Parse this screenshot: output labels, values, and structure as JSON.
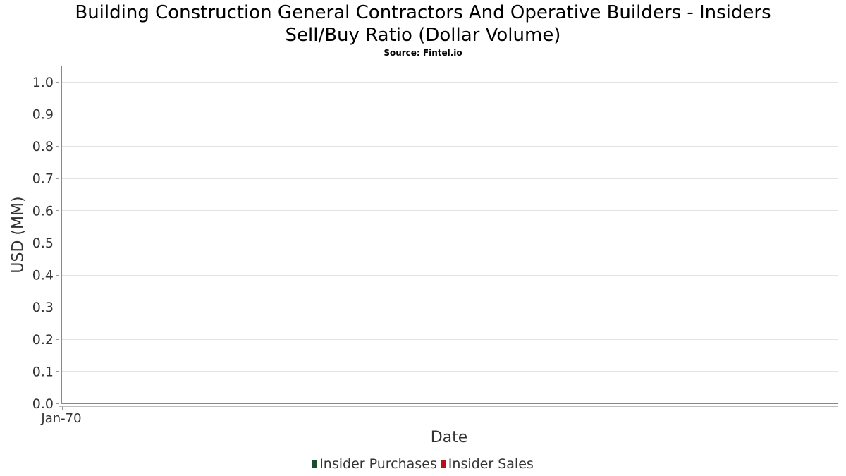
{
  "chart_data": {
    "type": "bar",
    "title_line1": "Building Construction General Contractors And Operative Builders - Insiders",
    "title_line2": "Sell/Buy Ratio (Dollar Volume)",
    "subtitle": "Source: Fintel.io",
    "xlabel": "Date",
    "ylabel": "USD (MM)",
    "ylim": [
      0,
      1.05
    ],
    "yticks": [
      0.0,
      0.1,
      0.2,
      0.3,
      0.4,
      0.5,
      0.6,
      0.7,
      0.8,
      0.9,
      1.0
    ],
    "ytick_labels": [
      "0.0",
      "0.1",
      "0.2",
      "0.3",
      "0.4",
      "0.5",
      "0.6",
      "0.7",
      "0.8",
      "0.9",
      "1.0"
    ],
    "xtick_labels": [
      "Jan-70"
    ],
    "grid": true,
    "legend_placement": "bottom-center",
    "series": [
      {
        "name": "Insider Purchases",
        "color": "#1b4d2b",
        "values": []
      },
      {
        "name": "Insider Sales",
        "color": "#b3121b",
        "values": []
      }
    ]
  }
}
